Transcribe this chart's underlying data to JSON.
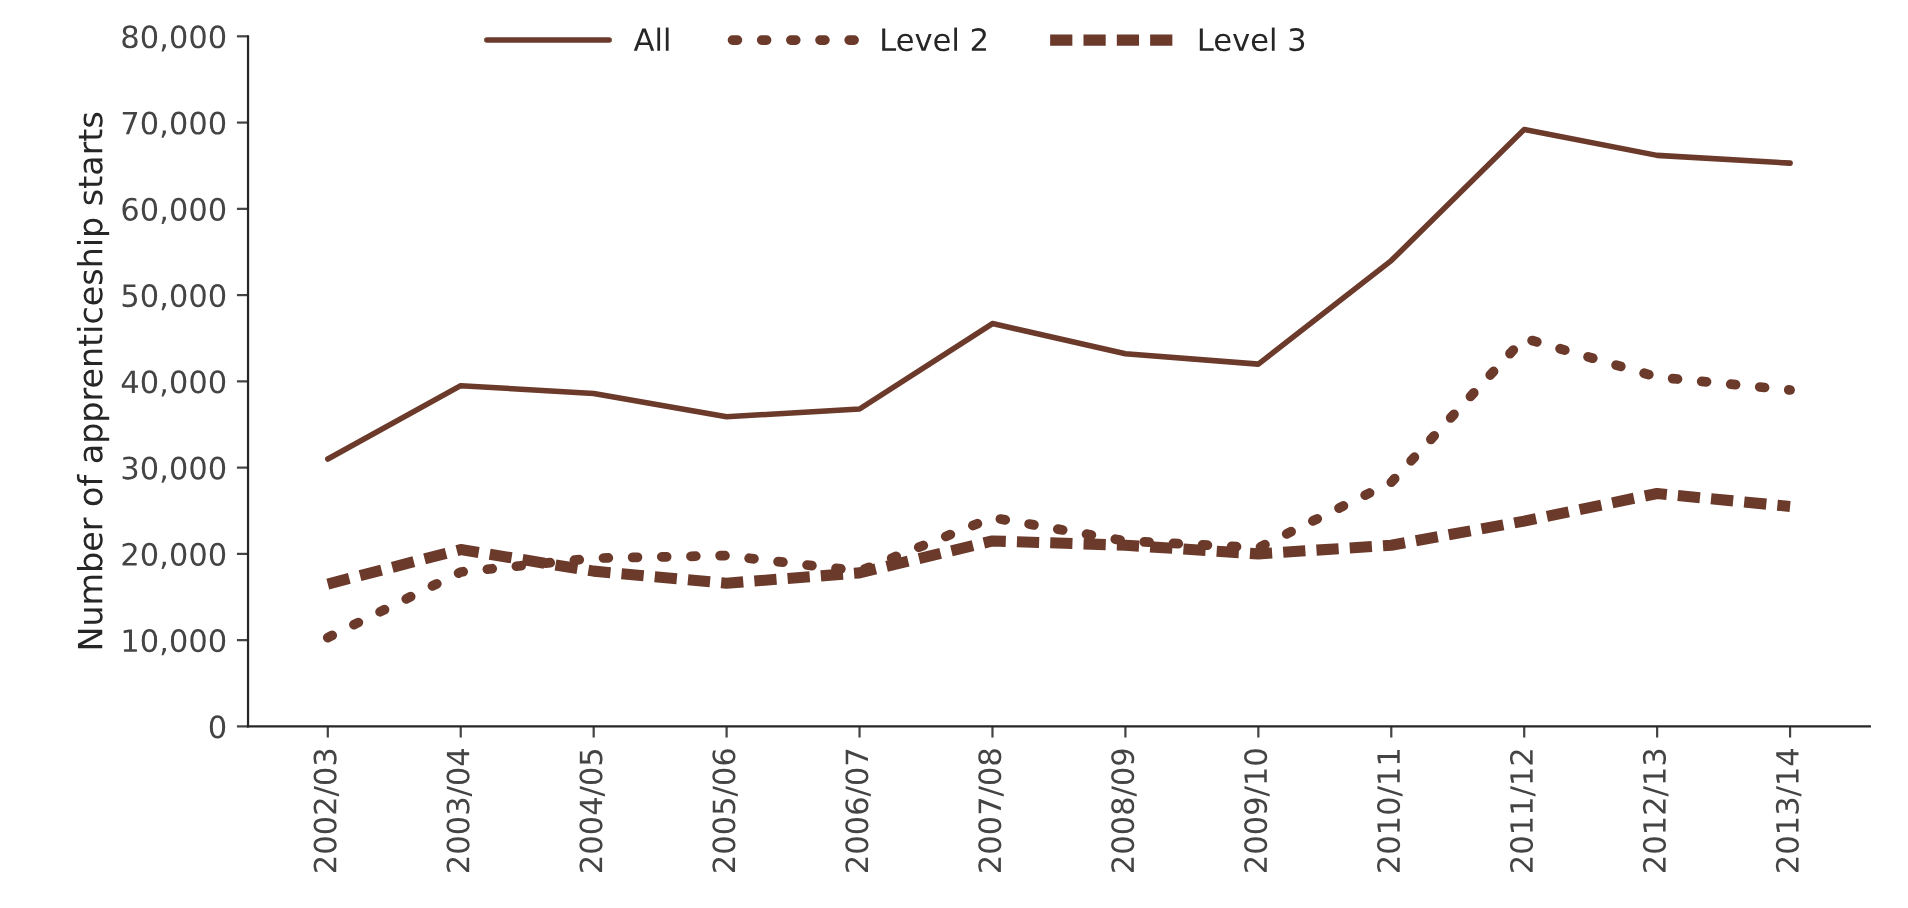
{
  "chart_data": {
    "type": "line",
    "ylabel": "Number of apprenticeship starts",
    "categories": [
      "2002/03",
      "2003/04",
      "2004/05",
      "2005/06",
      "2006/07",
      "2007/08",
      "2008/09",
      "2009/10",
      "2010/11",
      "2011/12",
      "2012/13",
      "2013/14"
    ],
    "series": [
      {
        "name": "All",
        "color": "#6b3a2a",
        "line_style": "solid",
        "values": [
          31000,
          39500,
          38600,
          35900,
          36800,
          46700,
          43200,
          42000,
          54000,
          69200,
          66200,
          65300
        ]
      },
      {
        "name": "Level 2",
        "color": "#6b3a2a",
        "line_style": "dotted",
        "values": [
          10300,
          17900,
          19500,
          19800,
          18000,
          24200,
          21500,
          20700,
          28300,
          45000,
          40500,
          39000
        ]
      },
      {
        "name": "Level 3",
        "color": "#6b3a2a",
        "line_style": "dashed",
        "values": [
          16500,
          20500,
          18000,
          16600,
          17800,
          21500,
          21000,
          20000,
          21000,
          23800,
          27000,
          25500
        ]
      }
    ],
    "ylim": [
      0,
      80000
    ],
    "yticks": [
      {
        "value": 0,
        "label": "0"
      },
      {
        "value": 10000,
        "label": "10,000"
      },
      {
        "value": 20000,
        "label": "20,000"
      },
      {
        "value": 30000,
        "label": "30,000"
      },
      {
        "value": 40000,
        "label": "40,000"
      },
      {
        "value": 50000,
        "label": "50,000"
      },
      {
        "value": 60000,
        "label": "60,000"
      },
      {
        "value": 70000,
        "label": "70,000"
      },
      {
        "value": 80000,
        "label": "80,000"
      }
    ],
    "grid": false,
    "legend": "top",
    "marker": "none"
  }
}
